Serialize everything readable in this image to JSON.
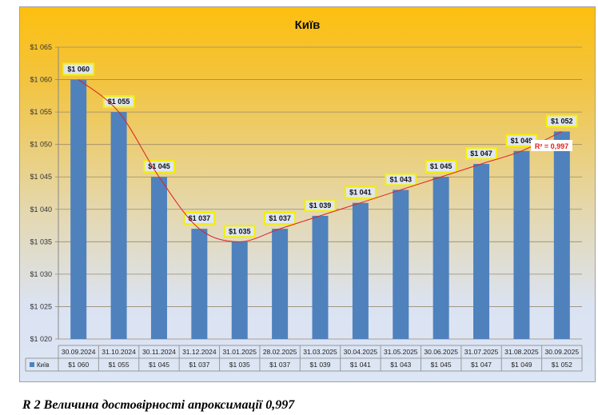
{
  "chart_data": {
    "type": "bar",
    "title": "Київ",
    "series": [
      {
        "name": "Київ",
        "values": [
          1060,
          1055,
          1045,
          1037,
          1035,
          1037,
          1039,
          1041,
          1043,
          1045,
          1047,
          1049,
          1052
        ],
        "color": "#4f81bd"
      }
    ],
    "categories": [
      "30.09.2024",
      "31.10.2024",
      "30.11.2024",
      "31.12.2024",
      "31.01.2025",
      "28.02.2025",
      "31.03.2025",
      "30.04.2025",
      "31.05.2025",
      "30.06.2025",
      "31.07.2025",
      "31.08.2025",
      "30.09.2025"
    ],
    "value_labels": [
      "$1 060",
      "$1 055",
      "$1 045",
      "$1 037",
      "$1 035",
      "$1 037",
      "$1 039",
      "$1 041",
      "$1 043",
      "$1 045",
      "$1 047",
      "$1 049",
      "$1 052"
    ],
    "ylim": [
      1020,
      1065
    ],
    "yticks": [
      1020,
      1025,
      1030,
      1035,
      1040,
      1045,
      1050,
      1055,
      1060,
      1065
    ],
    "ytick_labels": [
      "$1 020",
      "$1 025",
      "$1 030",
      "$1 035",
      "$1 040",
      "$1 045",
      "$1 050",
      "$1 055",
      "$1 060",
      "$1 065"
    ],
    "trendline": {
      "type": "polynomial",
      "color": "#e02020",
      "r2_label": "R² = 0,997"
    },
    "grid": true,
    "legend": "data-table"
  },
  "caption": "R 2 Величина достовірності апроксимації 0,997"
}
